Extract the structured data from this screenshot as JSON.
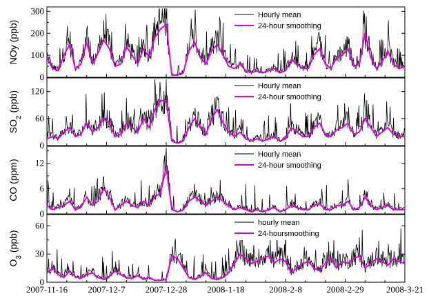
{
  "chart_data": {
    "type": "line",
    "x_axis": {
      "type": "date",
      "range": [
        "2007-11-16",
        "2008-03-21"
      ],
      "tick_labels": [
        "2007-11-16",
        "2007-12-7",
        "2007-12-28",
        "2008-1-18",
        "2008-2-8",
        "2008-2-29",
        "2008-3-21"
      ]
    },
    "colors": {
      "hourly": "#000000",
      "smoothed": "#e000e0"
    },
    "grid": false,
    "panels": [
      {
        "ylabel": "NOy (ppb)",
        "ylabel_main": "NOy (ppb)",
        "ylabel_sub": "",
        "ylabel_tail": "",
        "ylim": [
          0,
          320
        ],
        "yticks": [
          "0",
          "100",
          "200",
          "300"
        ],
        "ytick_values": [
          0,
          100,
          200,
          300
        ],
        "legend": {
          "position": "top-right",
          "entries": [
            "Hourly mean",
            "24-hour smoothing"
          ]
        },
        "series": [
          {
            "name": "24-hour smoothing",
            "style": "smoothed",
            "x": [
              "2007-11-16",
              "2007-11-18",
              "2007-11-20",
              "2007-11-22",
              "2007-11-24",
              "2007-11-26",
              "2007-11-28",
              "2007-11-30",
              "2007-12-2",
              "2007-12-4",
              "2007-12-6",
              "2007-12-8",
              "2007-12-10",
              "2007-12-12",
              "2007-12-14",
              "2007-12-16",
              "2007-12-18",
              "2007-12-20",
              "2007-12-22",
              "2007-12-24",
              "2007-12-26",
              "2007-12-28",
              "2007-12-30",
              "2008-1-1",
              "2008-1-3",
              "2008-1-5",
              "2008-1-7",
              "2008-1-9",
              "2008-1-11",
              "2008-1-13",
              "2008-1-15",
              "2008-1-17",
              "2008-1-19",
              "2008-1-21",
              "2008-1-23",
              "2008-1-25",
              "2008-1-27",
              "2008-1-29",
              "2008-1-31",
              "2008-2-2",
              "2008-2-4",
              "2008-2-6",
              "2008-2-8",
              "2008-2-10",
              "2008-2-12",
              "2008-2-14",
              "2008-2-16",
              "2008-2-18",
              "2008-2-20",
              "2008-2-22",
              "2008-2-24",
              "2008-2-26",
              "2008-2-28",
              "2008-3-1",
              "2008-3-3",
              "2008-3-5",
              "2008-3-7",
              "2008-3-9",
              "2008-3-11",
              "2008-3-13",
              "2008-3-15",
              "2008-3-17",
              "2008-3-19",
              "2008-3-21"
            ],
            "values": [
              90,
              40,
              30,
              100,
              150,
              40,
              60,
              160,
              60,
              110,
              170,
              130,
              50,
              60,
              140,
              100,
              60,
              130,
              90,
              180,
              220,
              240,
              10,
              10,
              20,
              120,
              160,
              90,
              60,
              120,
              150,
              100,
              50,
              40,
              60,
              30,
              20,
              30,
              20,
              30,
              40,
              20,
              30,
              80,
              60,
              40,
              40,
              100,
              130,
              60,
              40,
              90,
              100,
              130,
              50,
              60,
              200,
              90,
              40,
              70,
              120,
              60,
              40,
              50
            ]
          }
        ]
      },
      {
        "ylabel": "SO2 (ppb)",
        "ylabel_main": "SO",
        "ylabel_sub": "2",
        "ylabel_tail": " (ppb)",
        "ylim": [
          0,
          150
        ],
        "yticks": [
          "0",
          "60",
          "120"
        ],
        "ytick_values": [
          0,
          60,
          120
        ],
        "legend": {
          "position": "top-right",
          "entries": [
            "Hourly mean",
            "24-hour smoothing"
          ]
        },
        "series": [
          {
            "name": "24-hour smoothing",
            "style": "smoothed",
            "x": [
              "2007-11-16",
              "2007-11-18",
              "2007-11-20",
              "2007-11-22",
              "2007-11-24",
              "2007-11-26",
              "2007-11-28",
              "2007-11-30",
              "2007-12-2",
              "2007-12-4",
              "2007-12-6",
              "2007-12-8",
              "2007-12-10",
              "2007-12-12",
              "2007-12-14",
              "2007-12-16",
              "2007-12-18",
              "2007-12-20",
              "2007-12-22",
              "2007-12-24",
              "2007-12-26",
              "2007-12-28",
              "2007-12-30",
              "2008-1-1",
              "2008-1-3",
              "2008-1-5",
              "2008-1-7",
              "2008-1-9",
              "2008-1-11",
              "2008-1-13",
              "2008-1-15",
              "2008-1-17",
              "2008-1-19",
              "2008-1-21",
              "2008-1-23",
              "2008-1-25",
              "2008-1-27",
              "2008-1-29",
              "2008-1-31",
              "2008-2-2",
              "2008-2-4",
              "2008-2-6",
              "2008-2-8",
              "2008-2-10",
              "2008-2-12",
              "2008-2-14",
              "2008-2-16",
              "2008-2-18",
              "2008-2-20",
              "2008-2-22",
              "2008-2-24",
              "2008-2-26",
              "2008-2-28",
              "2008-3-1",
              "2008-3-3",
              "2008-3-5",
              "2008-3-7",
              "2008-3-9",
              "2008-3-11",
              "2008-3-13",
              "2008-3-15",
              "2008-3-17",
              "2008-3-19",
              "2008-3-21"
            ],
            "values": [
              15,
              20,
              15,
              30,
              40,
              20,
              25,
              50,
              30,
              40,
              60,
              50,
              20,
              25,
              50,
              40,
              30,
              60,
              40,
              80,
              100,
              100,
              10,
              5,
              10,
              40,
              60,
              40,
              25,
              60,
              80,
              50,
              30,
              20,
              30,
              15,
              10,
              15,
              10,
              15,
              20,
              10,
              15,
              40,
              30,
              20,
              20,
              40,
              50,
              25,
              20,
              35,
              40,
              50,
              25,
              30,
              60,
              40,
              20,
              30,
              40,
              25,
              20,
              20
            ]
          }
        ]
      },
      {
        "ylabel": "CO (ppm)",
        "ylabel_main": "CO (ppm)",
        "ylabel_sub": "",
        "ylabel_tail": "",
        "ylim": [
          0,
          16
        ],
        "yticks": [
          "0",
          "6",
          "12"
        ],
        "ytick_values": [
          0,
          6,
          12
        ],
        "legend": {
          "position": "top-right",
          "entries": [
            "Hourly mean",
            "24-hour smoothing"
          ]
        },
        "series": [
          {
            "name": "24-hour smoothing",
            "style": "smoothed",
            "x": [
              "2007-11-16",
              "2007-11-18",
              "2007-11-20",
              "2007-11-22",
              "2007-11-24",
              "2007-11-26",
              "2007-11-28",
              "2007-11-30",
              "2007-12-2",
              "2007-12-4",
              "2007-12-6",
              "2007-12-8",
              "2007-12-10",
              "2007-12-12",
              "2007-12-14",
              "2007-12-16",
              "2007-12-18",
              "2007-12-20",
              "2007-12-22",
              "2007-12-24",
              "2007-12-26",
              "2007-12-28",
              "2007-12-30",
              "2008-1-1",
              "2008-1-3",
              "2008-1-5",
              "2008-1-7",
              "2008-1-9",
              "2008-1-11",
              "2008-1-13",
              "2008-1-15",
              "2008-1-17",
              "2008-1-19",
              "2008-1-21",
              "2008-1-23",
              "2008-1-25",
              "2008-1-27",
              "2008-1-29",
              "2008-1-31",
              "2008-2-2",
              "2008-2-4",
              "2008-2-6",
              "2008-2-8",
              "2008-2-10",
              "2008-2-12",
              "2008-2-14",
              "2008-2-16",
              "2008-2-18",
              "2008-2-20",
              "2008-2-22",
              "2008-2-24",
              "2008-2-26",
              "2008-2-28",
              "2008-3-1",
              "2008-3-3",
              "2008-3-5",
              "2008-3-7",
              "2008-3-9",
              "2008-3-11",
              "2008-3-13",
              "2008-3-15",
              "2008-3-17",
              "2008-3-19",
              "2008-3-21"
            ],
            "values": [
              2,
              1,
              1.5,
              2,
              3,
              1,
              1.5,
              4,
              2,
              3,
              6,
              4,
              1,
              2,
              3,
              2,
              1.5,
              3,
              2,
              4,
              5,
              11,
              1,
              0.5,
              1,
              3,
              4,
              3,
              2,
              3,
              4,
              3,
              2,
              1,
              1.5,
              1,
              0.5,
              1,
              0.5,
              1,
              1.5,
              0.5,
              1,
              2,
              1.5,
              1,
              1,
              2,
              2.5,
              1,
              1,
              2,
              2,
              3,
              1,
              1.5,
              4,
              2,
              1,
              1.5,
              2,
              1,
              1,
              1
            ]
          }
        ]
      },
      {
        "ylabel": "O3 (ppb)",
        "ylabel_main": "O",
        "ylabel_sub": "3",
        "ylabel_tail": " (ppb)",
        "ylim": [
          0,
          72
        ],
        "yticks": [
          "0",
          "30",
          "60"
        ],
        "ytick_values": [
          0,
          30,
          60
        ],
        "legend": {
          "position": "top-right",
          "entries": [
            "hourly mean",
            "24-hoursmoothing"
          ]
        },
        "series": [
          {
            "name": "24-hoursmoothing",
            "style": "smoothed",
            "x": [
              "2007-11-16",
              "2007-11-18",
              "2007-11-20",
              "2007-11-22",
              "2007-11-24",
              "2007-11-26",
              "2007-11-28",
              "2007-11-30",
              "2007-12-2",
              "2007-12-4",
              "2007-12-6",
              "2007-12-8",
              "2007-12-10",
              "2007-12-12",
              "2007-12-14",
              "2007-12-16",
              "2007-12-18",
              "2007-12-20",
              "2007-12-22",
              "2007-12-24",
              "2007-12-26",
              "2007-12-28",
              "2007-12-30",
              "2008-1-1",
              "2008-1-3",
              "2008-1-5",
              "2008-1-7",
              "2008-1-9",
              "2008-1-11",
              "2008-1-13",
              "2008-1-15",
              "2008-1-17",
              "2008-1-19",
              "2008-1-21",
              "2008-1-23",
              "2008-1-25",
              "2008-1-27",
              "2008-1-29",
              "2008-1-31",
              "2008-2-2",
              "2008-2-4",
              "2008-2-6",
              "2008-2-8",
              "2008-2-10",
              "2008-2-12",
              "2008-2-14",
              "2008-2-16",
              "2008-2-18",
              "2008-2-20",
              "2008-2-22",
              "2008-2-24",
              "2008-2-26",
              "2008-2-28",
              "2008-3-1",
              "2008-3-3",
              "2008-3-5",
              "2008-3-7",
              "2008-3-9",
              "2008-3-11",
              "2008-3-13",
              "2008-3-15",
              "2008-3-17",
              "2008-3-19",
              "2008-3-21"
            ],
            "values": [
              10,
              15,
              8,
              5,
              12,
              6,
              4,
              8,
              10,
              5,
              3,
              6,
              12,
              8,
              5,
              4,
              7,
              3,
              5,
              2,
              2,
              3,
              28,
              25,
              15,
              5,
              3,
              6,
              10,
              4,
              3,
              5,
              10,
              20,
              30,
              25,
              20,
              22,
              25,
              28,
              20,
              25,
              22,
              10,
              15,
              20,
              22,
              15,
              12,
              20,
              25,
              15,
              22,
              20,
              25,
              28,
              15,
              20,
              25,
              22,
              18,
              25,
              22,
              20
            ]
          }
        ]
      }
    ]
  }
}
